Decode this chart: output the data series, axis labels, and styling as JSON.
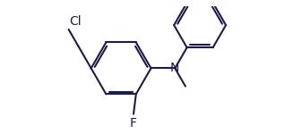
{
  "bond_color": "#1c1c4a",
  "bg_color": "#ffffff",
  "lw": 1.5,
  "dbo": 0.05,
  "fs": 10,
  "fig_width": 3.37,
  "fig_height": 1.5,
  "dpi": 100,
  "xlim": [
    -0.3,
    5.7
  ],
  "ylim": [
    -1.1,
    1.35
  ]
}
